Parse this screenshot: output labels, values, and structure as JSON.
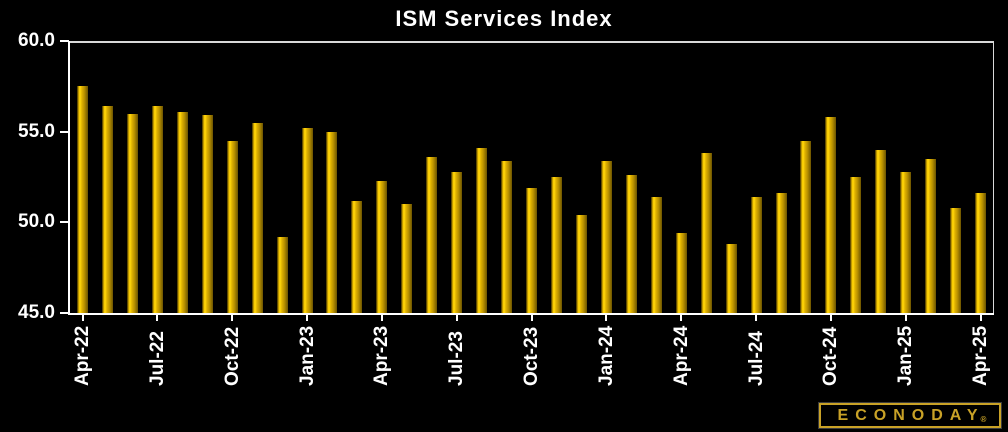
{
  "title": "ISM Services Index",
  "chart_data": {
    "type": "bar",
    "title": "ISM Services Index",
    "categories": [
      "Apr-22",
      "May-22",
      "Jun-22",
      "Jul-22",
      "Aug-22",
      "Sep-22",
      "Oct-22",
      "Nov-22",
      "Dec-22",
      "Jan-23",
      "Feb-23",
      "Mar-23",
      "Apr-23",
      "May-23",
      "Jun-23",
      "Jul-23",
      "Aug-23",
      "Sep-23",
      "Oct-23",
      "Nov-23",
      "Dec-23",
      "Jan-24",
      "Feb-24",
      "Mar-24",
      "Apr-24",
      "May-24",
      "Jun-24",
      "Jul-24",
      "Aug-24",
      "Sep-24",
      "Oct-24",
      "Nov-24",
      "Dec-24",
      "Jan-25",
      "Feb-25",
      "Mar-25",
      "Apr-25"
    ],
    "values": [
      57.5,
      56.4,
      56.0,
      56.4,
      56.1,
      55.9,
      54.5,
      55.5,
      49.2,
      55.2,
      55.0,
      51.2,
      52.3,
      51.0,
      53.6,
      52.8,
      54.1,
      53.4,
      51.9,
      52.5,
      50.4,
      53.4,
      52.6,
      51.4,
      49.4,
      53.8,
      48.8,
      51.4,
      51.6,
      54.5,
      55.8,
      52.5,
      54.0,
      52.8,
      53.5,
      50.8,
      51.6
    ],
    "x_tick_every": 3,
    "x_tick_labels": [
      "Apr-22",
      "Jul-22",
      "Oct-22",
      "Jan-23",
      "Apr-23",
      "Jul-23",
      "Oct-23",
      "Jan-24",
      "Apr-24",
      "Jul-24",
      "Oct-24",
      "Jan-25",
      "Apr-25"
    ],
    "ylim": [
      45.0,
      60.0
    ],
    "y_ticks": [
      "45.0",
      "50.0",
      "55.0",
      "60.0"
    ],
    "xlabel": "",
    "ylabel": "",
    "grid": false,
    "legend": false,
    "background": "#000000",
    "bar_color": "#f2c400",
    "axis_color": "#ffffff",
    "text_color": "#ffffff"
  },
  "branding": {
    "logo_text": "ECONODAY",
    "registered_mark": "®",
    "logo_color": "#c9a227"
  }
}
